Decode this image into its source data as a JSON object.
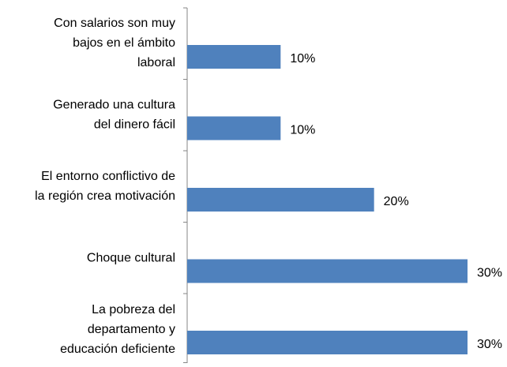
{
  "chart_data": {
    "type": "bar",
    "orientation": "horizontal",
    "categories": [
      "Con salarios son muy\nbajos en el ámbito\nlaboral",
      "Generado una cultura\ndel dinero fácil",
      "El entorno conflictivo de\nla región crea motivación",
      "Choque cultural",
      "La pobreza del\ndepartamento  y\neducación deficiente"
    ],
    "values": [
      10,
      10,
      20,
      30,
      30
    ],
    "value_labels": [
      "10%",
      "10%",
      "20%",
      "30%",
      "30%"
    ],
    "color": "#4f81bd"
  }
}
